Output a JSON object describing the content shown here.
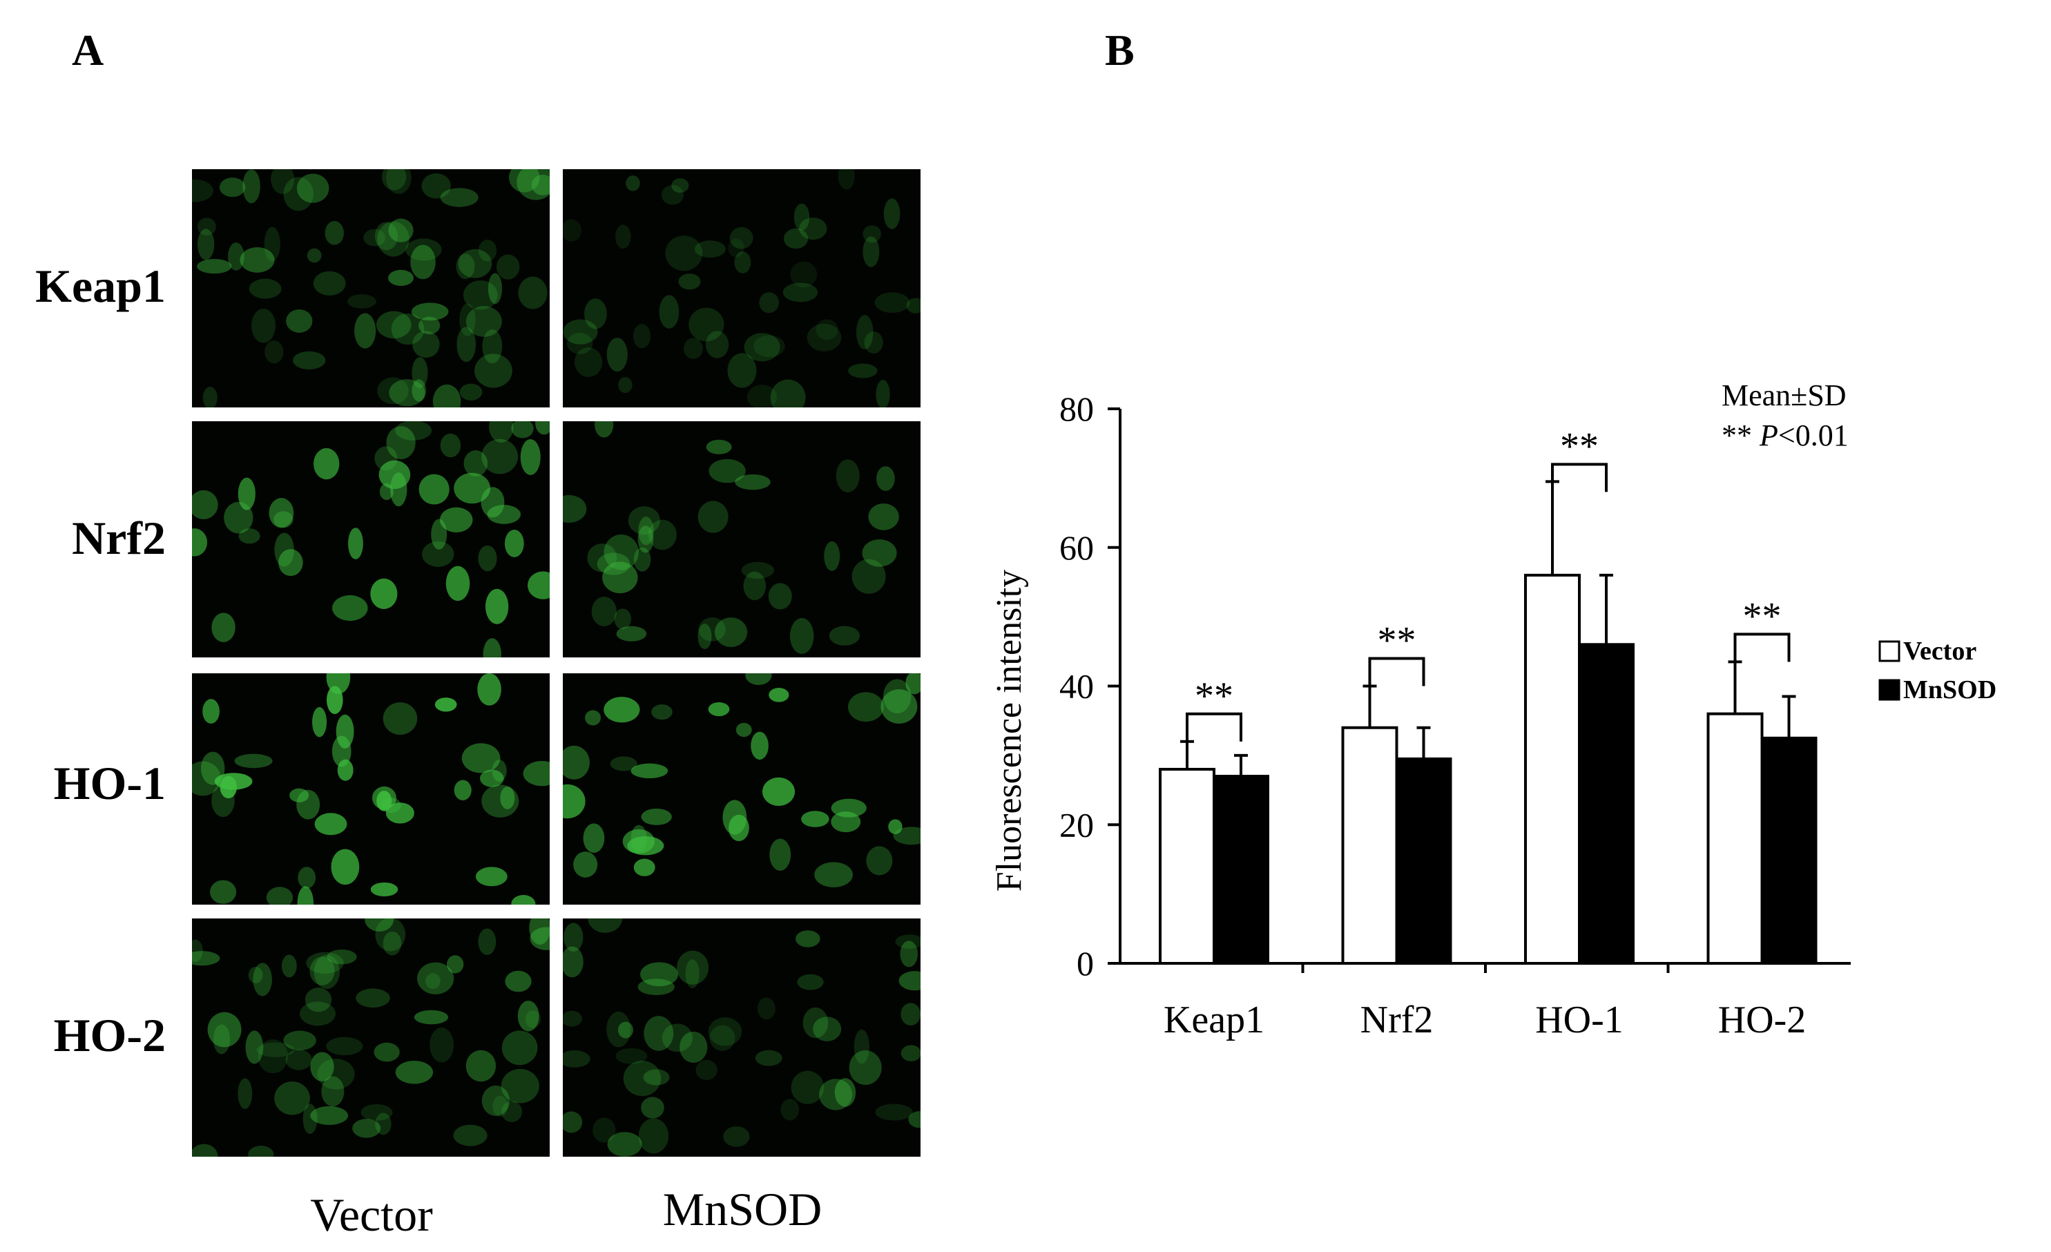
{
  "panel_a": {
    "label": "A",
    "rows": [
      "Keap1",
      "Nrf2",
      "HO-1",
      "HO-2"
    ],
    "columns": [
      "Vector",
      "MnSOD"
    ],
    "image_color": "#3fbf3f",
    "image_background": "#020402"
  },
  "panel_b": {
    "label": "B"
  },
  "chart_data": {
    "type": "bar",
    "categories": [
      "Keap1",
      "Nrf2",
      "HO-1",
      "HO-2"
    ],
    "series": [
      {
        "name": "Vector",
        "values": [
          28,
          34,
          56,
          36
        ],
        "errors": [
          4,
          6,
          13.5,
          7.5
        ],
        "color": "#ffffff"
      },
      {
        "name": "MnSOD",
        "values": [
          27,
          29.5,
          46,
          32.5
        ],
        "errors": [
          3,
          4.5,
          10,
          6
        ],
        "color": "#000000"
      }
    ],
    "ylabel": "Fluorescence intensity",
    "xlabel": "",
    "ylim": [
      0,
      80
    ],
    "yticks": [
      0,
      20,
      40,
      60,
      80
    ],
    "significance": [
      "**",
      "**",
      "**",
      "**"
    ],
    "annotation_line1": "Mean±SD",
    "annotation_line2_prefix": "** ",
    "annotation_line2_p": "P",
    "annotation_line2_suffix": "<0.01",
    "legend_position": "right",
    "grid": false
  }
}
